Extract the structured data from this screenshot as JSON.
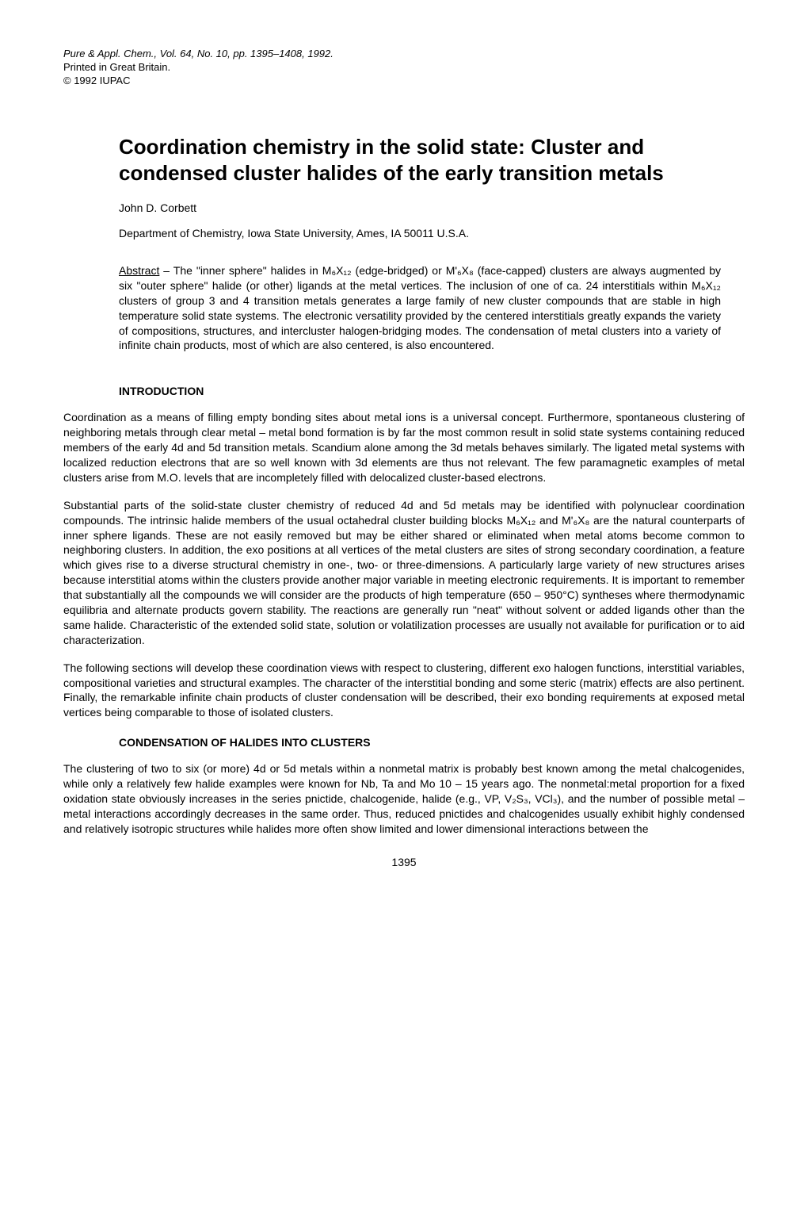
{
  "header": {
    "journal_line": "Pure & Appl. Chem., Vol. 64, No. 10, pp. 1395–1408, 1992.",
    "printed_line": "Printed in Great Britain.",
    "copyright_line": "© 1992 IUPAC"
  },
  "title": "Coordination chemistry in the solid state: Cluster and condensed cluster halides of the early transition metals",
  "author": "John D. Corbett",
  "affiliation": "Department of Chemistry, Iowa State University, Ames, IA  50011  U.S.A.",
  "abstract_label": "Abstract",
  "abstract_text": " – The \"inner sphere\" halides in M₆X₁₂ (edge-bridged) or M'₆X₈ (face-capped) clusters are always augmented by six \"outer sphere\" halide (or other) ligands at the metal vertices. The inclusion of one of ca. 24 interstitials within M₆X₁₂ clusters of group 3 and 4 transition metals generates a large family of new cluster compounds that are stable in high temperature solid state systems. The electronic versatility provided by the centered interstitials greatly expands the variety of compositions, structures, and intercluster halogen-bridging modes. The condensation of metal clusters into a variety of infinite chain products, most of which are also centered, is also encountered.",
  "sections": {
    "intro_heading": "INTRODUCTION",
    "intro_p1": "Coordination as a means of filling empty bonding sites about metal ions is a universal concept. Furthermore, spontaneous clustering of neighboring metals through clear metal – metal bond formation is by far the most common result in solid state systems containing reduced members of the early 4d and 5d transition metals. Scandium alone among the 3d metals behaves similarly. The ligated metal systems with localized reduction electrons that are so well known with 3d elements are thus not relevant. The few paramagnetic examples of metal clusters arise from M.O. levels that are incompletely filled with delocalized cluster-based electrons.",
    "intro_p2": "Substantial parts of the solid-state cluster chemistry of reduced 4d and 5d metals may be identified with polynuclear coordination compounds. The intrinsic halide members of the usual octahedral cluster building blocks M₆X₁₂ and M'₆X₈ are the natural counterparts of inner sphere ligands. These are not easily removed but may be either shared or eliminated when metal atoms become common to neighboring clusters. In addition, the exo positions at all vertices of the metal clusters are sites of strong secondary coordination, a feature which gives rise to a diverse structural chemistry in one-, two- or three-dimensions. A particularly large variety of new structures arises because interstitial atoms within the clusters provide another major variable in meeting electronic requirements. It is important to remember that substantially all the compounds we will consider are the products of high temperature (650 – 950°C) syntheses where thermodynamic equilibria and alternate products govern stability. The reactions are generally run \"neat\" without solvent or added ligands other than the same halide. Characteristic of the extended solid state, solution or volatilization processes are usually not available for purification or to aid characterization.",
    "intro_p3": "The following sections will develop these coordination views with respect to clustering, different exo halogen functions, interstitial variables, compositional varieties and structural examples. The character of the interstitial bonding and some steric (matrix) effects are also pertinent. Finally, the remarkable infinite chain products of cluster condensation will be described, their exo bonding requirements at exposed metal vertices being comparable to those of isolated clusters.",
    "cond_heading": "CONDENSATION OF HALIDES INTO CLUSTERS",
    "cond_p1": "The clustering of two to six (or more) 4d or 5d metals within a nonmetal matrix is probably best known among the metal chalcogenides, while only a relatively few halide examples were known for Nb, Ta and Mo 10 – 15 years ago. The nonmetal:metal proportion for a fixed oxidation state obviously increases in the series pnictide, chalcogenide, halide (e.g., VP, V₂S₃, VCl₃), and the number of possible metal – metal interactions accordingly decreases in the same order. Thus, reduced pnictides and chalcogenides usually exhibit highly condensed and relatively isotropic structures while halides more often show limited and lower dimensional interactions between the"
  },
  "page_number": "1395",
  "style": {
    "background_color": "#ffffff",
    "text_color": "#000000",
    "title_fontsize": 26,
    "body_fontsize": 14,
    "header_fontsize": 13
  }
}
